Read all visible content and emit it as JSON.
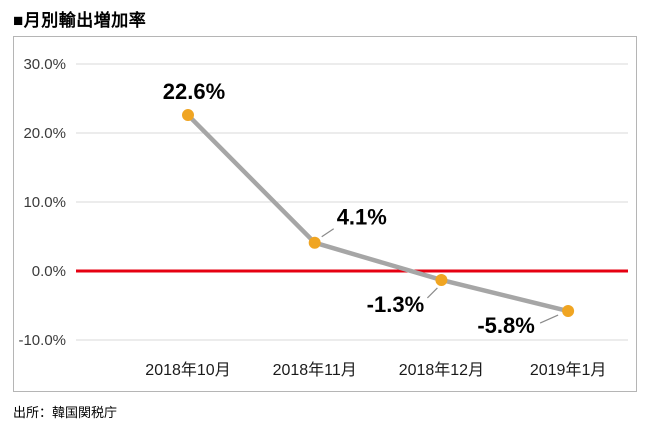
{
  "page": {
    "title": "■月別輸出増加率",
    "source": "出所：韓国関税庁"
  },
  "chart_data": {
    "type": "line",
    "title": "月別輸出増加率",
    "categories": [
      "2018年10月",
      "2018年11月",
      "2018年12月",
      "2019年1月"
    ],
    "values": [
      22.6,
      4.1,
      -1.3,
      -5.8
    ],
    "point_labels": [
      "22.6%",
      "4.1%",
      "-1.3%",
      "-5.8%"
    ],
    "y_ticks": [
      30,
      20,
      10,
      0,
      -10
    ],
    "y_tick_labels": [
      "30.0%",
      "20.0%",
      "10.0%",
      "0.0%",
      "-10.0%"
    ],
    "ylim": [
      -12,
      32
    ],
    "unit": "%",
    "grid": true,
    "legend": false,
    "zero_line": {
      "value": 0,
      "color": "#e60012"
    },
    "colors": {
      "line": "#a6a6a6",
      "marker": "#f0a522",
      "grid": "#d9d9d9",
      "leader": "#8a8a8a",
      "axis_text": "#3a3a3a",
      "x_axis_text": "#1a1a1a",
      "label_text": "#000000"
    }
  }
}
